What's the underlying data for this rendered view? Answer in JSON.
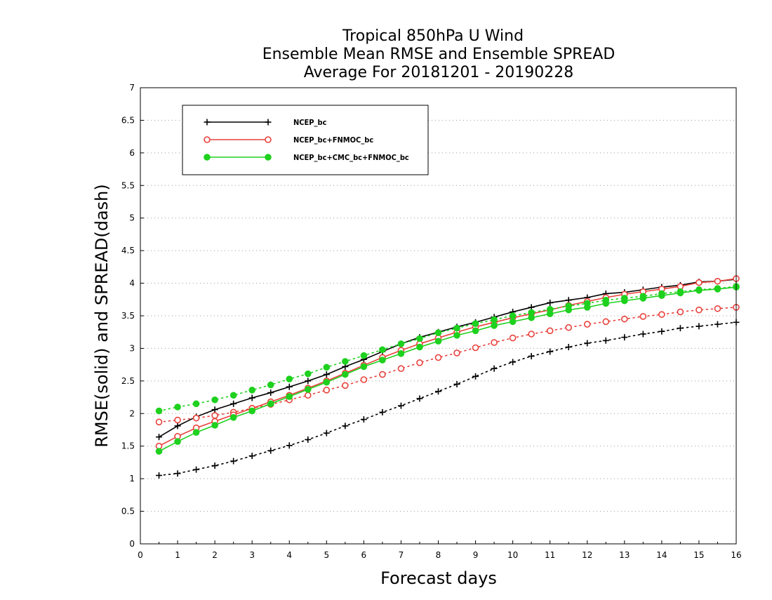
{
  "chart_data": {
    "type": "line",
    "title": [
      "Tropical 850hPa U Wind",
      "Ensemble Mean RMSE and Ensemble SPREAD",
      "Average For 20181201 - 20190228"
    ],
    "xlabel": "Forecast days",
    "ylabel": "RMSE(solid) and SPREAD(dash)",
    "xlim": [
      0,
      16
    ],
    "ylim": [
      0,
      7
    ],
    "xticks": [
      0,
      1,
      2,
      3,
      4,
      5,
      6,
      7,
      8,
      9,
      10,
      11,
      12,
      13,
      14,
      15,
      16
    ],
    "yticks": [
      0,
      0.5,
      1,
      1.5,
      2,
      2.5,
      3,
      3.5,
      4,
      4.5,
      5,
      5.5,
      6,
      6.5,
      7
    ],
    "grid": "horizontal dotted",
    "legend_position": "top-left",
    "x": [
      0.5,
      1,
      1.5,
      2,
      2.5,
      3,
      3.5,
      4,
      4.5,
      5,
      5.5,
      6,
      6.5,
      7,
      7.5,
      8,
      8.5,
      9,
      9.5,
      10,
      10.5,
      11,
      11.5,
      12,
      12.5,
      13,
      13.5,
      14,
      14.5,
      15,
      15.5,
      16
    ],
    "series": [
      {
        "name": "NCEP_bc",
        "color": "#000000",
        "marker": "plus",
        "rmse": [
          1.64,
          1.81,
          1.95,
          2.06,
          2.15,
          2.24,
          2.32,
          2.41,
          2.5,
          2.6,
          2.72,
          2.83,
          2.95,
          3.07,
          3.17,
          3.25,
          3.33,
          3.4,
          3.48,
          3.56,
          3.63,
          3.7,
          3.74,
          3.78,
          3.84,
          3.86,
          3.9,
          3.94,
          3.97,
          4.02,
          4.03,
          4.06
        ],
        "spread": [
          1.05,
          1.08,
          1.14,
          1.2,
          1.27,
          1.35,
          1.43,
          1.51,
          1.6,
          1.7,
          1.81,
          1.91,
          2.02,
          2.12,
          2.23,
          2.34,
          2.45,
          2.57,
          2.69,
          2.79,
          2.88,
          2.95,
          3.02,
          3.08,
          3.12,
          3.17,
          3.22,
          3.26,
          3.31,
          3.34,
          3.37,
          3.4
        ]
      },
      {
        "name": "NCEP_bc+FNMOC_bc",
        "color": "#e8413c",
        "marker": "open-circle",
        "rmse": [
          1.5,
          1.65,
          1.78,
          1.88,
          1.98,
          2.08,
          2.18,
          2.28,
          2.39,
          2.5,
          2.62,
          2.74,
          2.86,
          2.97,
          3.07,
          3.16,
          3.25,
          3.33,
          3.4,
          3.47,
          3.53,
          3.59,
          3.66,
          3.72,
          3.78,
          3.83,
          3.87,
          3.91,
          3.95,
          4.01,
          4.03,
          4.07
        ],
        "spread": [
          1.87,
          1.9,
          1.93,
          1.97,
          2.02,
          2.08,
          2.14,
          2.21,
          2.28,
          2.36,
          2.43,
          2.52,
          2.6,
          2.69,
          2.78,
          2.86,
          2.93,
          3.01,
          3.09,
          3.16,
          3.22,
          3.27,
          3.32,
          3.37,
          3.41,
          3.45,
          3.49,
          3.52,
          3.56,
          3.59,
          3.61,
          3.63
        ]
      },
      {
        "name": "NCEP_bc+CMC_bc+FNMOC_bc",
        "color": "#1ed11e",
        "marker": "filled-circle",
        "rmse": [
          1.42,
          1.57,
          1.71,
          1.82,
          1.94,
          2.04,
          2.15,
          2.26,
          2.37,
          2.48,
          2.6,
          2.72,
          2.82,
          2.92,
          3.02,
          3.11,
          3.2,
          3.27,
          3.35,
          3.41,
          3.47,
          3.53,
          3.59,
          3.63,
          3.69,
          3.73,
          3.77,
          3.81,
          3.85,
          3.89,
          3.91,
          3.94
        ],
        "spread": [
          2.04,
          2.1,
          2.15,
          2.21,
          2.28,
          2.36,
          2.44,
          2.53,
          2.61,
          2.71,
          2.8,
          2.89,
          2.98,
          3.07,
          3.15,
          3.24,
          3.31,
          3.38,
          3.44,
          3.5,
          3.55,
          3.6,
          3.65,
          3.69,
          3.74,
          3.77,
          3.8,
          3.84,
          3.87,
          3.9,
          3.92,
          3.95
        ]
      }
    ]
  }
}
